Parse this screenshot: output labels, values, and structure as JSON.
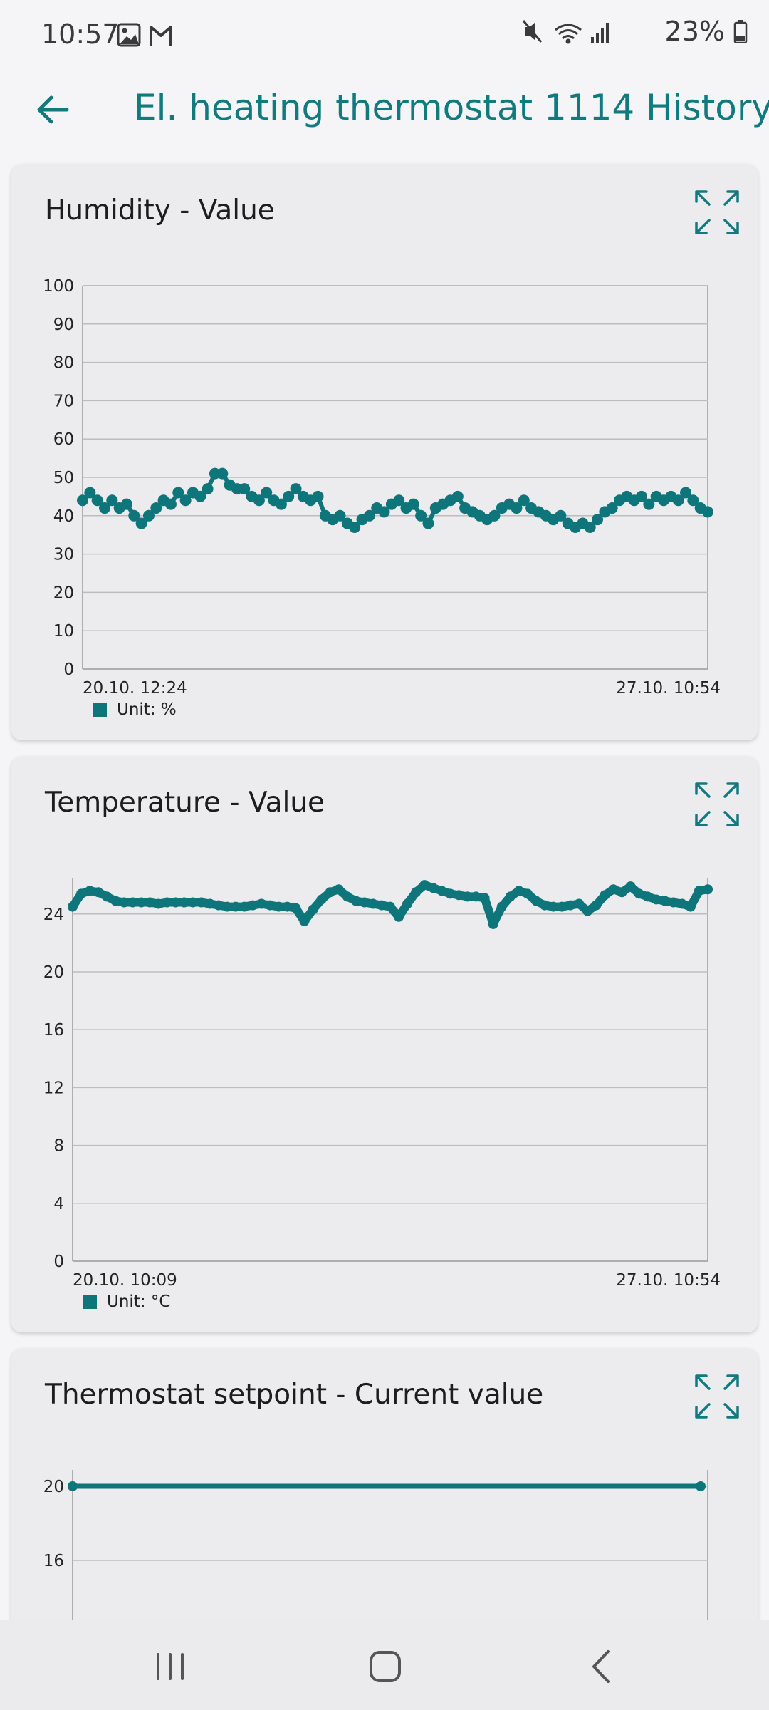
{
  "status_bar": {
    "time": "10:57",
    "left_icons": [
      "image-icon",
      "gmail-icon"
    ],
    "right_icons": [
      "mute-icon",
      "wifi-icon",
      "signal-icon",
      "battery-icon"
    ],
    "battery_percent": "23%"
  },
  "app_bar": {
    "title": "El. heating thermostat 1114 History",
    "back_icon": "arrow-left-icon"
  },
  "colors": {
    "accent": "#117a7f",
    "series": "#0e757a",
    "grid": "#bdbdbd",
    "card": "#ececee"
  },
  "cards": [
    {
      "title": "Humidity  - Value",
      "expand_icon": "expand-icon",
      "legend": "Unit: %",
      "x_start_label": "20.10. 12:24",
      "x_end_label": "27.10. 10:54"
    },
    {
      "title": "Temperature  - Value",
      "expand_icon": "expand-icon",
      "legend": "Unit: °C",
      "x_start_label": "20.10. 10:09",
      "x_end_label": "27.10. 10:54"
    },
    {
      "title": "Thermostat setpoint  - Current value",
      "expand_icon": "expand-icon"
    }
  ],
  "chart_data": [
    {
      "type": "line",
      "title": "Humidity  - Value",
      "ylim": [
        0,
        100
      ],
      "yticks": [
        0,
        10,
        20,
        30,
        40,
        50,
        60,
        70,
        80,
        90,
        100
      ],
      "x_start": "20.10. 12:24",
      "x_end": "27.10. 10:54",
      "legend": "Unit: %",
      "grid": true,
      "series": [
        {
          "values": [
            44,
            46,
            44,
            42,
            44,
            42,
            43,
            40,
            38,
            40,
            42,
            44,
            43,
            46,
            44,
            46,
            45,
            47,
            51,
            51,
            48,
            47,
            47,
            45,
            44,
            46,
            44,
            43,
            45,
            47,
            45,
            44,
            45,
            40,
            39,
            40,
            38,
            37,
            39,
            40,
            42,
            41,
            43,
            44,
            42,
            43,
            40,
            38,
            42,
            43,
            44,
            45,
            42,
            41,
            40,
            39,
            40,
            42,
            43,
            42,
            44,
            42,
            41,
            40,
            39,
            40,
            38,
            37,
            38,
            37,
            39,
            41,
            42,
            44,
            45,
            44,
            45,
            43,
            45,
            44,
            45,
            44,
            46,
            44,
            42,
            41
          ]
        }
      ]
    },
    {
      "type": "line",
      "title": "Temperature  - Value",
      "ylim": [
        0,
        26.5
      ],
      "yticks": [
        0,
        4,
        8,
        12,
        16,
        20,
        24
      ],
      "x_start": "20.10. 10:09",
      "x_end": "27.10. 10:54",
      "legend": "Unit: °C",
      "grid": true,
      "series": [
        {
          "values": [
            24.5,
            25.4,
            25.6,
            25.5,
            25.2,
            24.9,
            24.8,
            24.8,
            24.8,
            24.8,
            24.7,
            24.8,
            24.8,
            24.8,
            24.8,
            24.8,
            24.7,
            24.6,
            24.5,
            24.5,
            24.5,
            24.6,
            24.7,
            24.6,
            24.5,
            24.5,
            24.4,
            23.5,
            24.3,
            25.0,
            25.5,
            25.7,
            25.2,
            24.9,
            24.8,
            24.7,
            24.6,
            24.5,
            23.8,
            24.7,
            25.5,
            26.0,
            25.8,
            25.6,
            25.4,
            25.3,
            25.2,
            25.2,
            25.1,
            23.3,
            24.5,
            25.2,
            25.6,
            25.4,
            24.9,
            24.6,
            24.5,
            24.5,
            24.6,
            24.7,
            24.2,
            24.6,
            25.3,
            25.7,
            25.5,
            25.9,
            25.4,
            25.2,
            25.0,
            24.9,
            24.8,
            24.7,
            24.5,
            25.6,
            25.7
          ]
        }
      ]
    },
    {
      "type": "line",
      "title": "Thermostat setpoint  - Current value",
      "yticks_visible": [
        16,
        20
      ],
      "grid": true,
      "series": [
        {
          "values": [
            20,
            20
          ]
        }
      ]
    }
  ]
}
